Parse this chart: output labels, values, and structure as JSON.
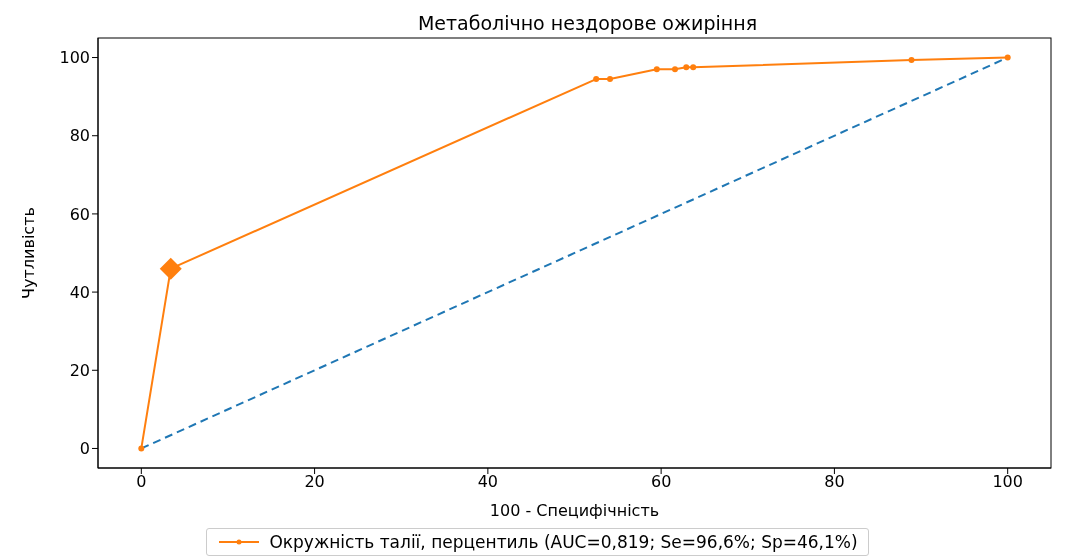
{
  "chart_data": {
    "type": "line",
    "title": "Метаболічно нездорове ожиріння",
    "xlabel": "100 - Специфічність",
    "ylabel": "Чутливість",
    "xlim": [
      -5,
      105
    ],
    "ylim": [
      -5,
      105
    ],
    "xticks": [
      0,
      20,
      40,
      60,
      80,
      100
    ],
    "yticks": [
      0,
      20,
      40,
      60,
      80,
      100
    ],
    "grid": false,
    "legend": "bottom",
    "series": [
      {
        "name": "Окружність талії, перцентиль (AUC=0,819; Se=96,6%; Sp=46,1%)",
        "color": "#ff7f0e",
        "marker": "circle",
        "line_style": "solid",
        "x": [
          0,
          3.4,
          52.5,
          54.1,
          59.5,
          61.6,
          62.9,
          63.7,
          88.9,
          100
        ],
        "values": [
          0,
          46,
          94.5,
          94.5,
          97,
          97,
          97.5,
          97.5,
          99.4,
          100
        ]
      },
      {
        "type": "scatter",
        "color": "#ff7f0e",
        "marker": "diamond",
        "x": [
          3.4
        ],
        "values": [
          46
        ]
      },
      {
        "color": "#1f77b4",
        "marker": "none",
        "line_style": "dashed",
        "x": [
          0,
          100
        ],
        "values": [
          0,
          100
        ]
      }
    ]
  }
}
